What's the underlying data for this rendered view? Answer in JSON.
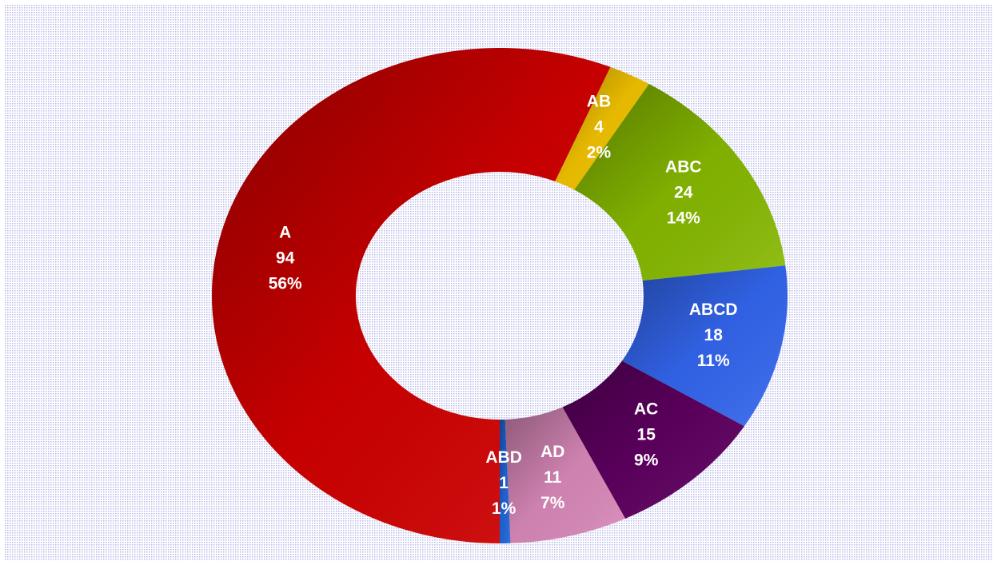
{
  "chart_data": {
    "type": "donut",
    "categories": [
      "A",
      "AB",
      "ABC",
      "ABCD",
      "AC",
      "AD",
      "ABD"
    ],
    "values": [
      94,
      4,
      24,
      18,
      15,
      11,
      1
    ],
    "percent_labels": [
      "56%",
      "2%",
      "14%",
      "11%",
      "9%",
      "7%",
      "1%"
    ],
    "colors": [
      "#d00000",
      "#f2c200",
      "#86b800",
      "#3366ee",
      "#5e0060",
      "#d888b8",
      "#1f64d8"
    ]
  }
}
